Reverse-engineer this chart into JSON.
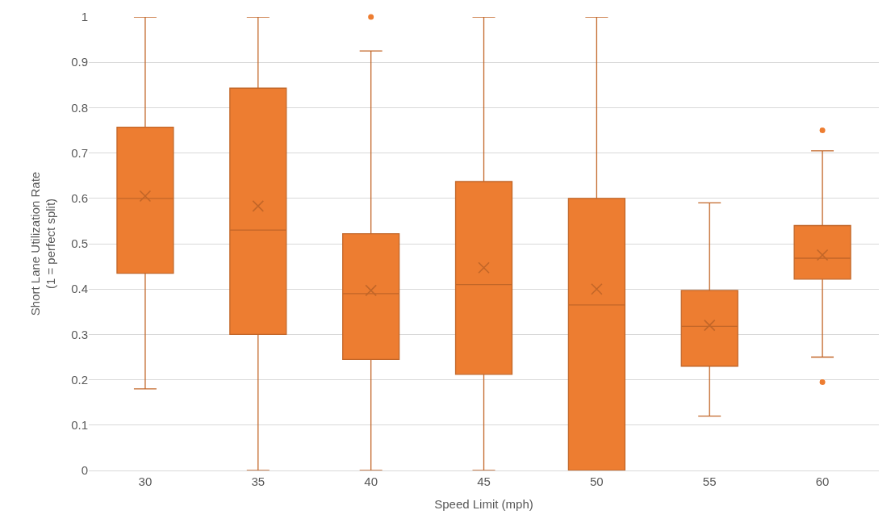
{
  "chart_data": {
    "type": "box",
    "xlabel": "Speed Limit (mph)",
    "ylabel": "Short Lane Utilization Rate\n(1 = perfect split)",
    "categories": [
      "30",
      "35",
      "40",
      "45",
      "50",
      "55",
      "60"
    ],
    "color": "#ed7d31",
    "boxes": [
      {
        "low": 0.18,
        "q1": 0.435,
        "median": 0.6,
        "q3": 0.757,
        "high": 1,
        "mean": 0.605
      },
      {
        "low": 0,
        "q1": 0.3,
        "median": 0.53,
        "q3": 0.843,
        "high": 1,
        "mean": 0.583
      },
      {
        "low": 0,
        "q1": 0.245,
        "median": 0.39,
        "q3": 0.522,
        "high": 0.925,
        "mean": 0.397,
        "outliers": [
          1
        ]
      },
      {
        "low": 0,
        "q1": 0.212,
        "median": 0.41,
        "q3": 0.637,
        "high": 1,
        "mean": 0.447
      },
      {
        "low": 0,
        "q1": 0,
        "median": 0.365,
        "q3": 0.6,
        "high": 1,
        "mean": 0.4
      },
      {
        "low": 0.12,
        "q1": 0.23,
        "median": 0.318,
        "q3": 0.397,
        "high": 0.59,
        "mean": 0.32
      },
      {
        "low": 0.25,
        "q1": 0.422,
        "median": 0.468,
        "q3": 0.54,
        "high": 0.705,
        "mean": 0.475,
        "outliers": [
          0.75,
          0.195
        ]
      }
    ],
    "ylim": [
      0,
      1
    ],
    "yticks": [
      0,
      0.1,
      0.2,
      0.3,
      0.4,
      0.5,
      0.6,
      0.7,
      0.8,
      0.9,
      1
    ],
    "grid": "y"
  }
}
